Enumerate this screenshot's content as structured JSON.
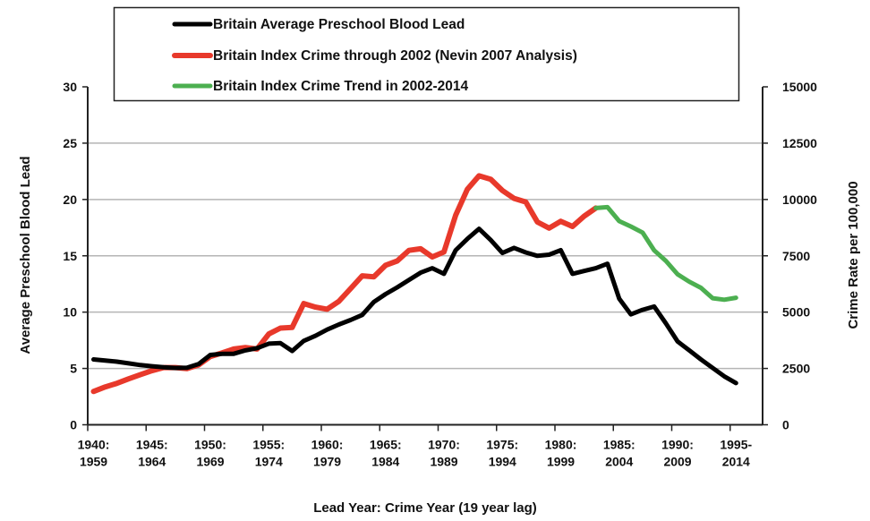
{
  "chart_data": {
    "type": "line",
    "title": "",
    "xlabel": "Lead Year: Crime Year (19 year lag)",
    "ylabel_left": "Average Preschool Blood Lead",
    "ylabel_right": "Crime Rate per 100,000",
    "ylim_left": [
      0,
      30
    ],
    "ylim_right": [
      0,
      15000
    ],
    "yticks_left": [
      "0",
      "5",
      "10",
      "15",
      "20",
      "25",
      "30"
    ],
    "yticks_right": [
      "0",
      "2500",
      "5000",
      "7500",
      "10000",
      "12500",
      "15000"
    ],
    "grid": true,
    "legend_placement": "top",
    "x_lead_years": [
      1940,
      1941,
      1942,
      1943,
      1944,
      1945,
      1946,
      1947,
      1948,
      1949,
      1950,
      1951,
      1952,
      1953,
      1954,
      1955,
      1956,
      1957,
      1958,
      1959,
      1960,
      1961,
      1962,
      1963,
      1964,
      1965,
      1966,
      1967,
      1968,
      1969,
      1970,
      1971,
      1972,
      1973,
      1974,
      1975,
      1976,
      1977,
      1978,
      1979,
      1980,
      1981,
      1982,
      1983,
      1984,
      1985,
      1986,
      1987,
      1988,
      1989,
      1990,
      1991,
      1992,
      1993,
      1994,
      1995
    ],
    "xtick_labels": [
      [
        "1940:",
        "1959"
      ],
      [
        "1945:",
        "1964"
      ],
      [
        "1950:",
        "1969"
      ],
      [
        "1955:",
        "1974"
      ],
      [
        "1960:",
        "1979"
      ],
      [
        "1965:",
        "1984"
      ],
      [
        "1970:",
        "1989"
      ],
      [
        "1975:",
        "1994"
      ],
      [
        "1980:",
        "1999"
      ],
      [
        "1985:",
        "2004"
      ],
      [
        "1990:",
        "2009"
      ],
      [
        "1995-",
        "2014"
      ]
    ],
    "series": [
      {
        "name": "Britain Average Preschool Blood Lead",
        "axis": "left",
        "color": "#000000",
        "start_lead_year": 1940,
        "values": [
          5.8,
          5.7,
          5.6,
          5.45,
          5.3,
          5.2,
          5.1,
          5.05,
          5.07,
          5.4,
          6.2,
          6.3,
          6.3,
          6.6,
          6.8,
          7.2,
          7.25,
          6.55,
          7.45,
          7.9,
          8.45,
          8.9,
          9.3,
          9.75,
          10.9,
          11.6,
          12.2,
          12.85,
          13.5,
          13.9,
          13.4,
          15.5,
          16.5,
          17.4,
          16.4,
          15.25,
          15.7,
          15.3,
          15.0,
          15.1,
          15.5,
          13.4,
          13.65,
          13.9,
          14.3,
          11.2,
          9.8,
          10.2,
          10.5,
          9.0,
          7.4,
          6.6,
          5.8,
          5.05,
          4.3,
          3.7
        ]
      },
      {
        "name": "Britain Index Crime through 2002 (Nevin 2007 Analysis)",
        "axis": "right",
        "color": "#e8392b",
        "start_lead_year": 1940,
        "values": [
          1480,
          1680,
          1840,
          2040,
          2220,
          2400,
          2540,
          2540,
          2490,
          2660,
          3030,
          3190,
          3360,
          3430,
          3360,
          4030,
          4290,
          4320,
          5380,
          5220,
          5130,
          5480,
          6040,
          6610,
          6570,
          7080,
          7270,
          7740,
          7810,
          7450,
          7670,
          9300,
          10450,
          11050,
          10900,
          10400,
          10050,
          9890,
          9000,
          8730,
          9030,
          8800,
          9260,
          9620
        ]
      },
      {
        "name": "Britain Index Crime Trend in 2002-2014",
        "axis": "right",
        "color": "#4caf50",
        "start_lead_year": 1983,
        "values": [
          9620,
          9660,
          9040,
          8800,
          8530,
          7740,
          7270,
          6680,
          6350,
          6080,
          5620,
          5550,
          5640
        ]
      }
    ]
  }
}
